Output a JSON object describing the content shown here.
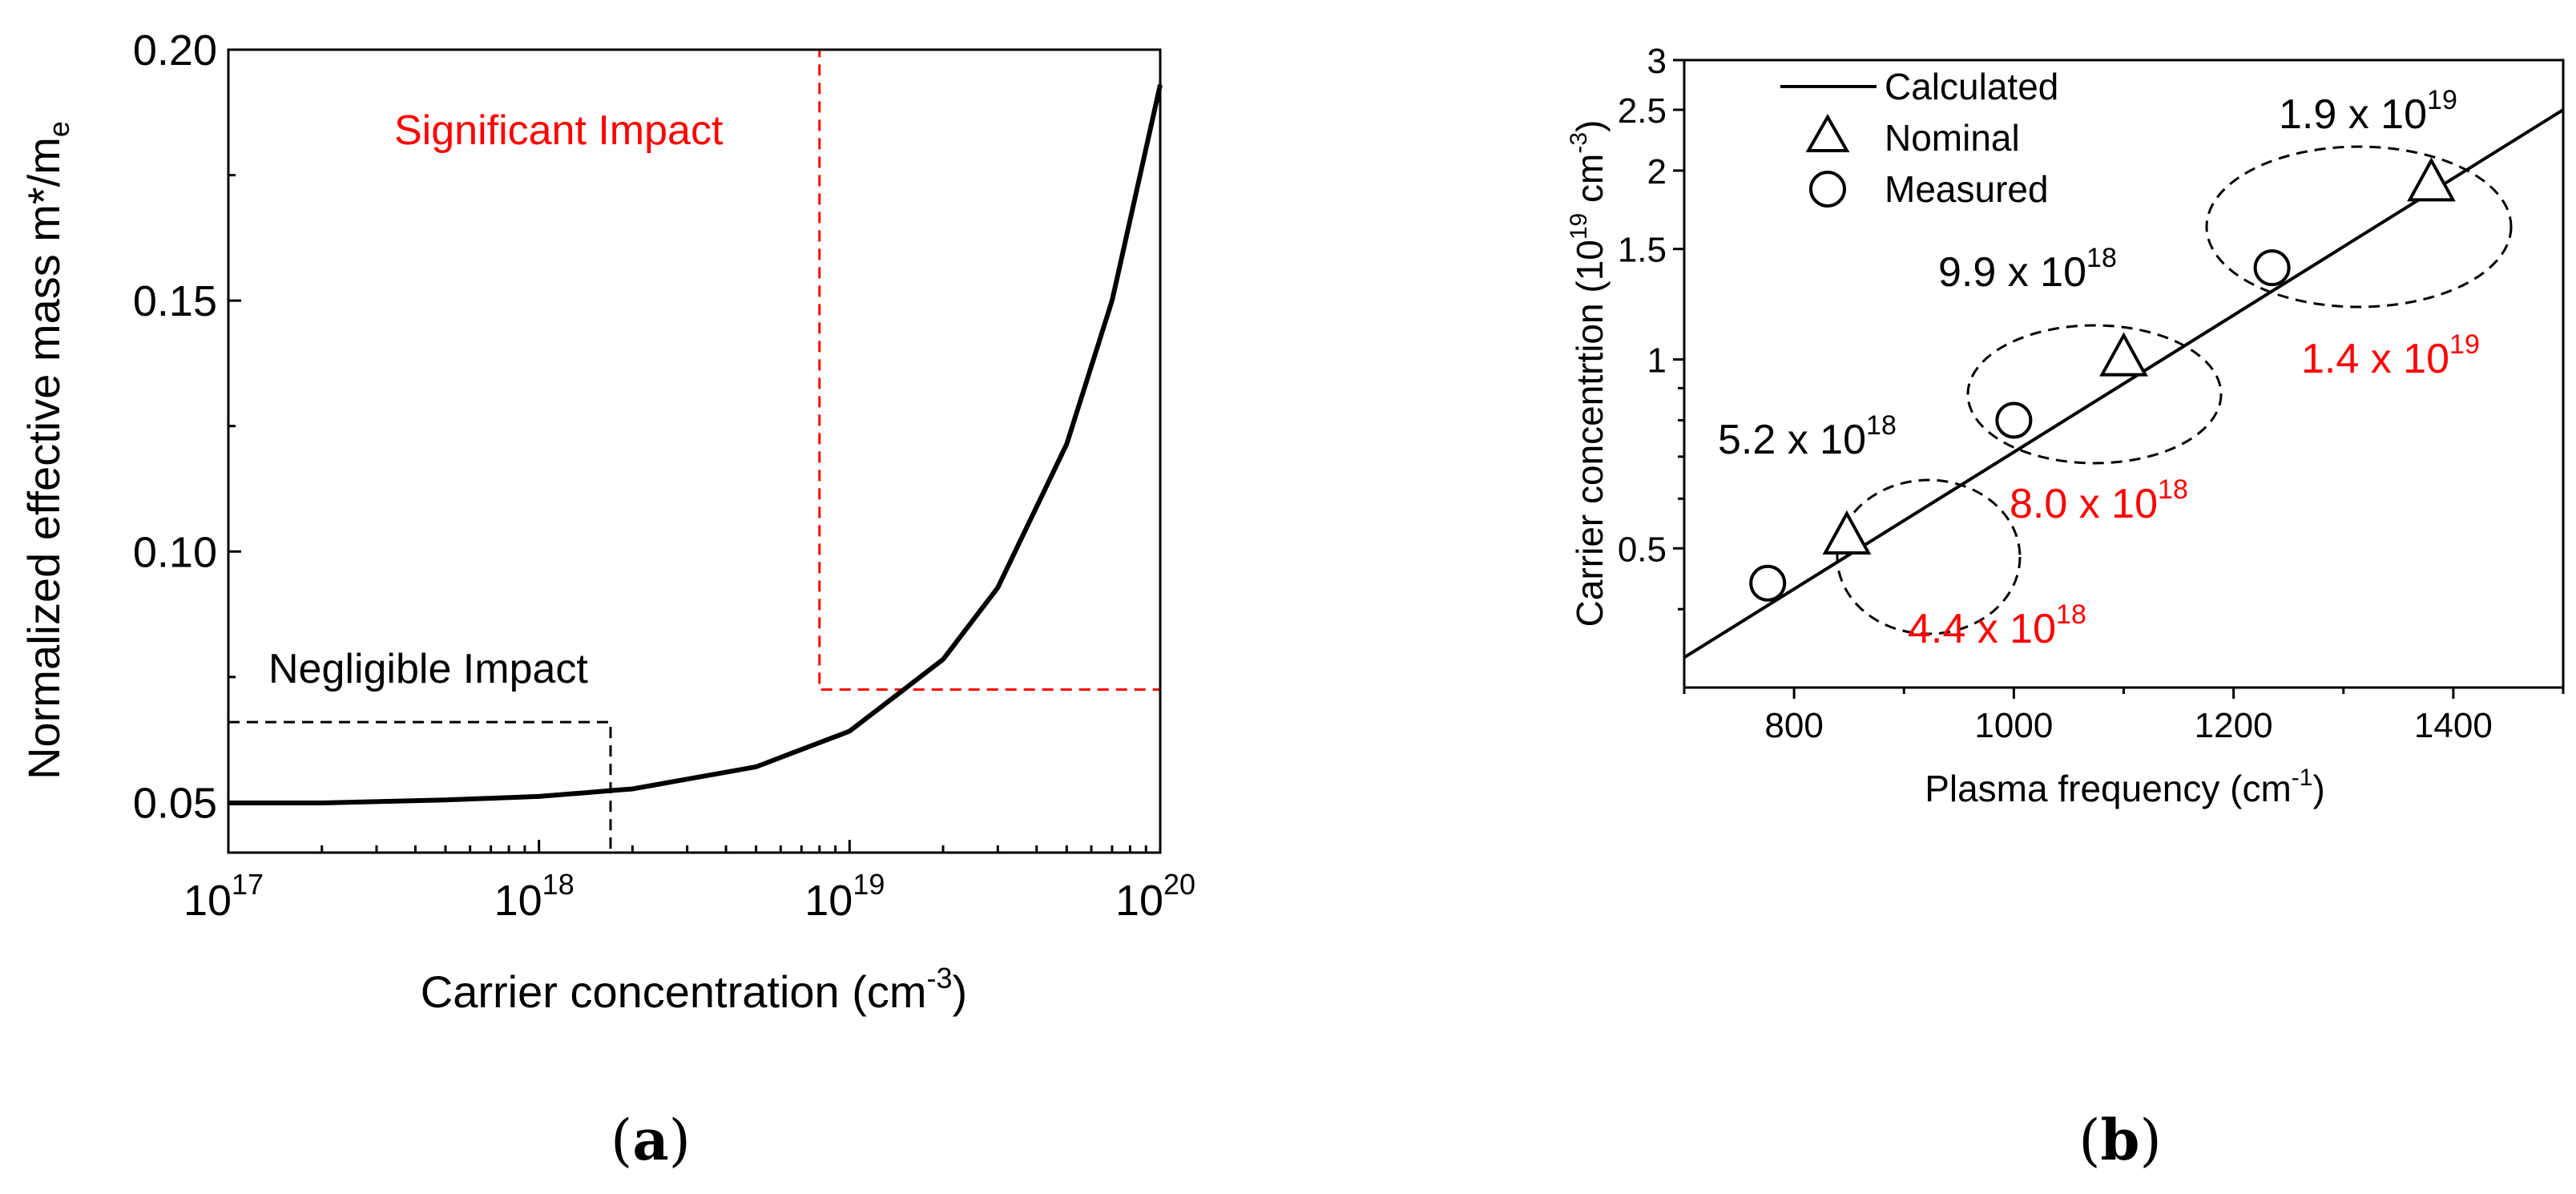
{
  "captions": {
    "a": "a",
    "b": "b"
  },
  "chart_data": [
    {
      "panel": "a",
      "type": "line",
      "xscale": "log",
      "xlabel": "Carrier concentration (cm",
      "xlabel_sup": "-3",
      "xlabel_end": ")",
      "ylabel": "Normalized effective mass m*/m",
      "ylabel_sub": "e",
      "xlim": [
        1e+17,
        1e+20
      ],
      "ylim": [
        0.04,
        0.2
      ],
      "xticks": [
        {
          "value": 1e+17,
          "base": "10",
          "exp": "17"
        },
        {
          "value": 1e+18,
          "base": "10",
          "exp": "18"
        },
        {
          "value": 1e+19,
          "base": "10",
          "exp": "19"
        },
        {
          "value": 1e+20,
          "base": "10",
          "exp": "20"
        }
      ],
      "yticks": [
        {
          "value": 0.05,
          "label": "0.05"
        },
        {
          "value": 0.1,
          "label": "0.10"
        },
        {
          "value": 0.15,
          "label": "0.15"
        },
        {
          "value": 0.2,
          "label": "0.20"
        }
      ],
      "series": [
        {
          "name": "effective mass",
          "x": [
            1e+17,
            2e+17,
            5e+17,
            1e+18,
            2e+18,
            5e+18,
            1e+19,
            2e+19,
            3e+19,
            5e+19,
            7e+19,
            1e+20
          ],
          "y": [
            0.0499,
            0.0499,
            0.0505,
            0.0512,
            0.0527,
            0.0571,
            0.0642,
            0.0785,
            0.0928,
            0.1214,
            0.15,
            0.193
          ]
        }
      ],
      "regions": [
        {
          "name": "negligible",
          "label": "Negligible Impact",
          "color": "#000000",
          "x0": 1e+17,
          "x1": 1.7e+18,
          "y0": 0.04,
          "y1": 0.066
        },
        {
          "name": "significant",
          "label": "Significant Impact",
          "color": "#ff0000",
          "x0": 8e+18,
          "x1": 1e+20,
          "y0": 0.0725,
          "y1": 0.2
        }
      ]
    },
    {
      "panel": "b",
      "type": "scatter",
      "yscale": "log",
      "xlabel": "Plasma frequency (cm",
      "xlabel_sup": "-1",
      "xlabel_end": ")",
      "ylabel": "Carrier concentrtion (10",
      "ylabel_sup1": "19",
      "ylabel_mid": " cm",
      "ylabel_sup2": "-3",
      "ylabel_end": ")",
      "xlim": [
        700,
        1500
      ],
      "ylim": [
        0.3,
        3
      ],
      "xticks": [
        {
          "value": 800,
          "label": "800"
        },
        {
          "value": 1000,
          "label": "1000"
        },
        {
          "value": 1200,
          "label": "1200"
        },
        {
          "value": 1400,
          "label": "1400"
        }
      ],
      "yticks": [
        {
          "value": 0.5,
          "label": "0.5"
        },
        {
          "value": 1,
          "label": "1"
        },
        {
          "value": 1.5,
          "label": "1.5"
        },
        {
          "value": 2,
          "label": "2"
        },
        {
          "value": 2.5,
          "label": "2.5"
        },
        {
          "value": 3,
          "label": "3"
        }
      ],
      "legend": {
        "position": "top-left",
        "calculated": "Calculated",
        "nominal": "Nominal",
        "measured": "Measured"
      },
      "calculated": {
        "x": [
          700,
          1500
        ],
        "y": [
          0.335,
          2.5
        ]
      },
      "nominal": {
        "x": [
          848,
          1100,
          1380
        ],
        "y": [
          0.52,
          1.0,
          1.9
        ]
      },
      "measured": {
        "x": [
          776,
          1000,
          1235
        ],
        "y": [
          0.44,
          0.8,
          1.4
        ]
      },
      "annotations": [
        {
          "name": "nominal-1",
          "base": "5.2 x 10",
          "exp": "18",
          "color": "#000000"
        },
        {
          "name": "measured-1",
          "base": "4.4 x 10",
          "exp": "18",
          "color": "#ff0000"
        },
        {
          "name": "nominal-2",
          "base": "9.9 x 10",
          "exp": "18",
          "color": "#000000"
        },
        {
          "name": "measured-2",
          "base": "8.0 x 10",
          "exp": "18",
          "color": "#ff0000"
        },
        {
          "name": "nominal-3",
          "base": "1.9 x 10",
          "exp": "19",
          "color": "#000000"
        },
        {
          "name": "measured-3",
          "base": "1.4 x 10",
          "exp": "19",
          "color": "#ff0000"
        }
      ]
    }
  ]
}
